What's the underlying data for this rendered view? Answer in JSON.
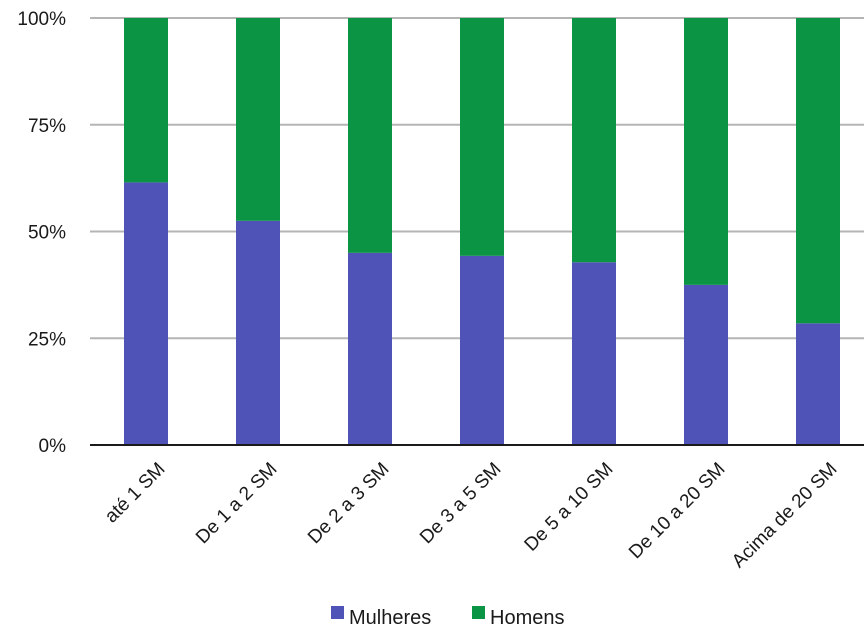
{
  "chart_data": {
    "type": "bar",
    "stacked": true,
    "normalized": true,
    "categories": [
      "até 1 SM",
      "De 1 a 2 SM",
      "De 2 a 3 SM",
      "De 3 a 5 SM",
      "De 5 a 10 SM",
      "De 10 a 20 SM",
      "Acima de 20 SM"
    ],
    "series": [
      {
        "name": "Mulheres",
        "color": "#4f53b8",
        "values": [
          61.5,
          52.5,
          45,
          44.3,
          42.8,
          37.5,
          28.5
        ]
      },
      {
        "name": "Homens",
        "color": "#0b9444",
        "values": [
          38.5,
          47.5,
          55,
          55.7,
          57.2,
          62.5,
          71.5
        ]
      }
    ],
    "yticks": [
      "0%",
      "25%",
      "50%",
      "75%",
      "100%"
    ],
    "ylim": [
      0,
      100
    ],
    "grid": true,
    "legend_position": "bottom",
    "title": "",
    "xlabel": "",
    "ylabel": ""
  }
}
